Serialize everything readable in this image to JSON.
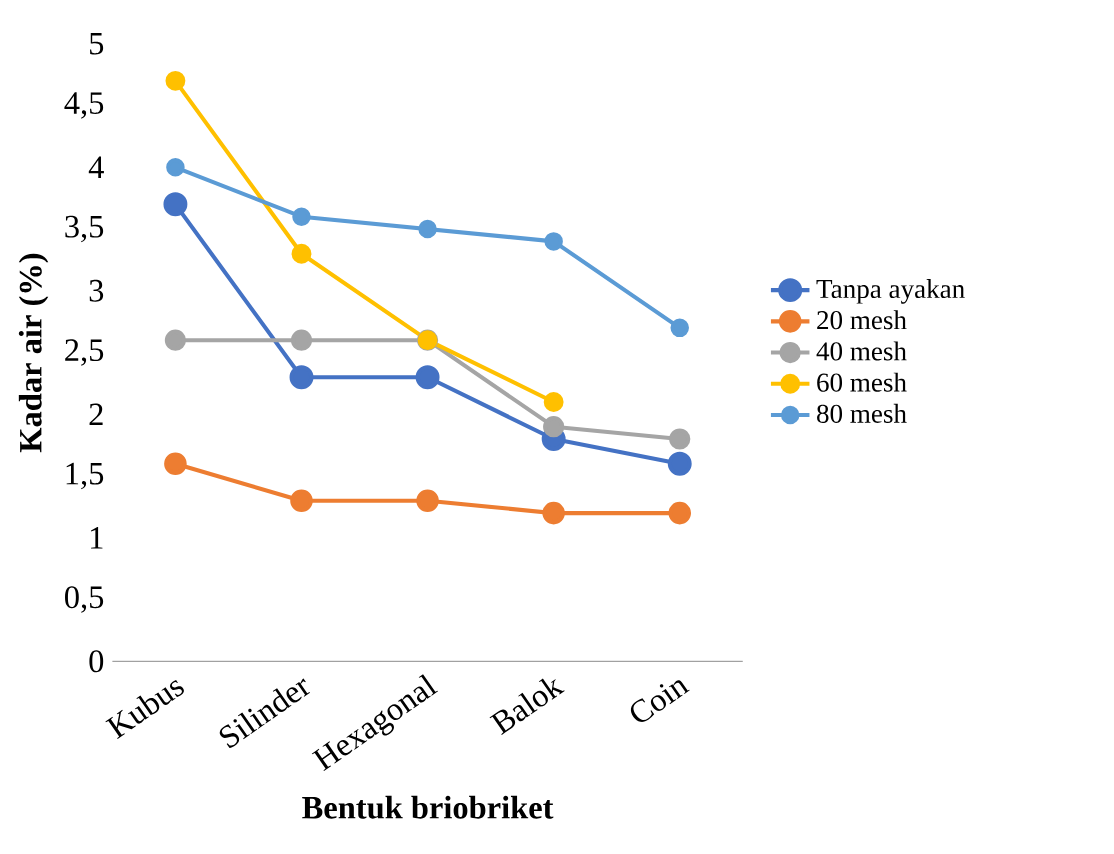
{
  "chart_data": {
    "type": "line",
    "xlabel": "Bentuk briobriket",
    "ylabel": "Kadar air (%)",
    "categories": [
      "Kubus",
      "Silinder",
      "Hexagonal",
      "Balok",
      "Coin"
    ],
    "series": [
      {
        "name": "Tanpa ayakan",
        "color": "#4472c4",
        "values": [
          3.7,
          2.3,
          2.3,
          1.8,
          1.6
        ]
      },
      {
        "name": "20 mesh",
        "color": "#ed7d31",
        "values": [
          1.6,
          1.3,
          1.3,
          1.2,
          1.2
        ]
      },
      {
        "name": "40 mesh",
        "color": "#a5a5a5",
        "values": [
          2.6,
          2.6,
          2.6,
          1.9,
          1.8
        ]
      },
      {
        "name": "60 mesh",
        "color": "#ffc000",
        "values": [
          4.7,
          3.3,
          2.6,
          2.1,
          null
        ]
      },
      {
        "name": "80 mesh",
        "color": "#5b9bd5",
        "values": [
          4.0,
          3.6,
          3.5,
          3.4,
          2.7
        ]
      }
    ],
    "ylim": [
      0,
      5
    ],
    "yticks": [
      0,
      {
        "value": 0.5,
        "label": "0,5"
      },
      1,
      {
        "value": 1.5,
        "label": "1,5"
      },
      2,
      {
        "value": 2.5,
        "label": "2,5"
      },
      3,
      {
        "value": 3.5,
        "label": "3,5"
      },
      4,
      {
        "value": 4.5,
        "label": "4,5"
      },
      5
    ],
    "marker": "circle",
    "legend": "right",
    "grid": false
  }
}
